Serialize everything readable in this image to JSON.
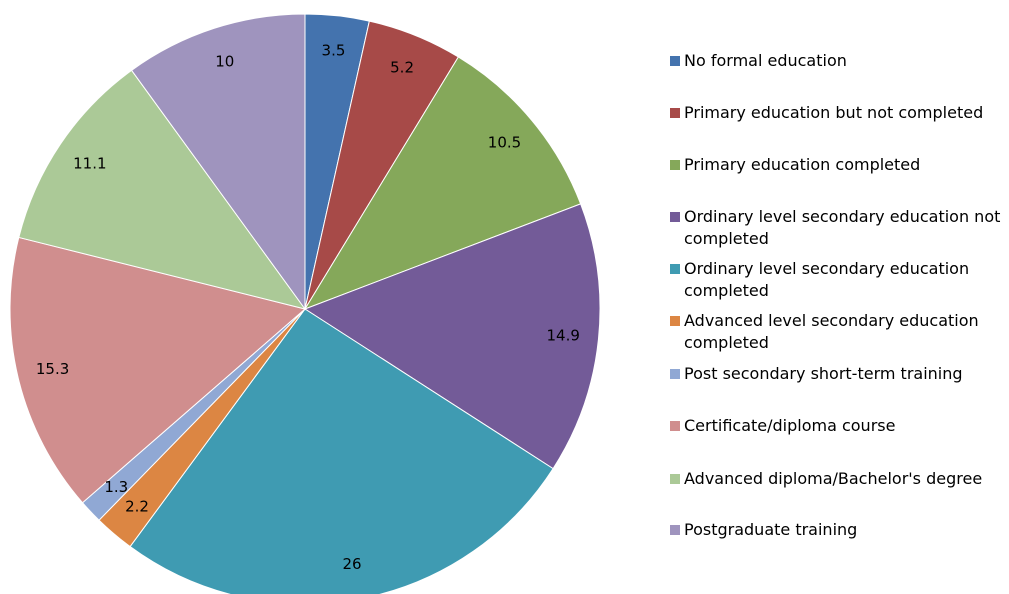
{
  "chart_data": {
    "type": "pie",
    "categories": [
      "No formal education",
      "Primary education but not completed",
      "Primary education completed",
      "Ordinary level secondary education not completed",
      "Ordinary level secondary education completed",
      "Advanced level secondary education completed",
      "Post secondary short-term training",
      "Certificate/diploma course",
      "Advanced diploma/Bachelor's degree",
      "Postgraduate training"
    ],
    "values": [
      3.5,
      5.2,
      10.5,
      14.9,
      26,
      2.2,
      1.3,
      15.3,
      11.1,
      10
    ],
    "colors": [
      "#4473ae",
      "#a74a48",
      "#85a85a",
      "#735b98",
      "#3f9bb2",
      "#dc8643",
      "#90a8d4",
      "#d08e8e",
      "#abc997",
      "#9f94be"
    ],
    "legend": "right"
  }
}
